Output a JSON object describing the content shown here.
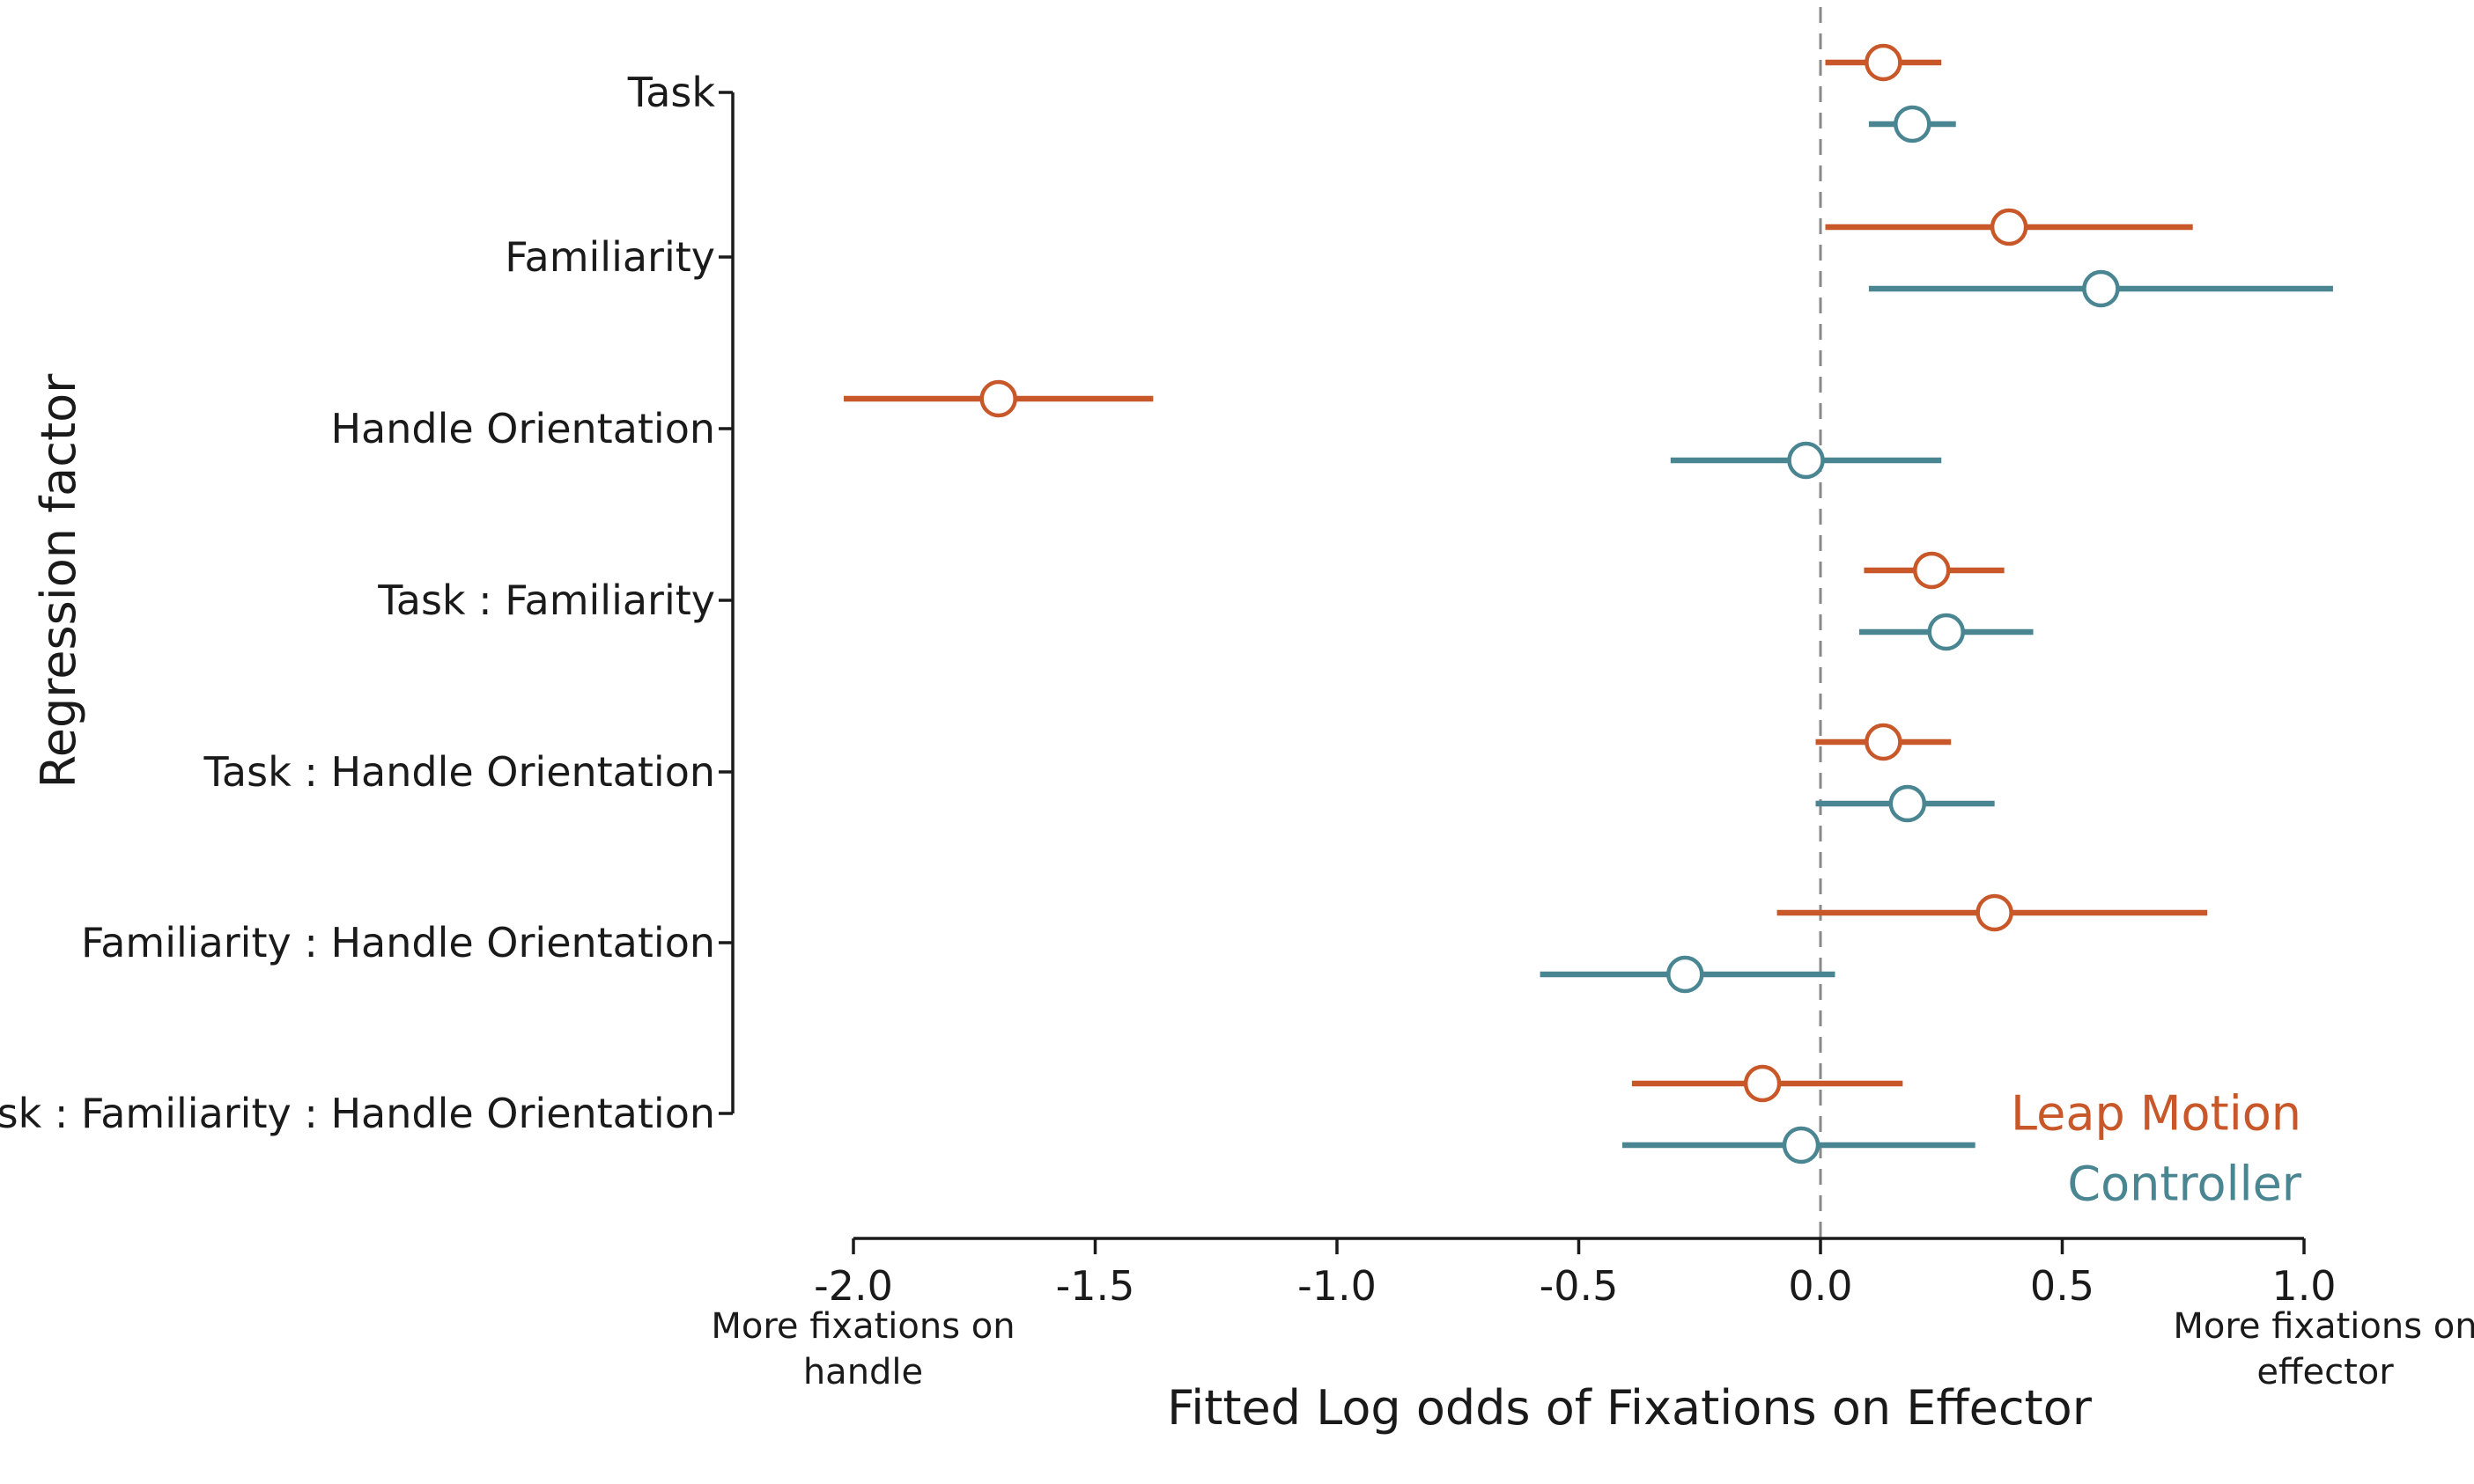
{
  "chart_data": {
    "type": "scatter",
    "subtype": "forest-plot",
    "xlabel": "Fitted Log odds of Fixations on Effector",
    "ylabel": "Regression factor",
    "xlim": [
      -2.0,
      1.0
    ],
    "x_ticks": [
      "-2.0",
      "-1.5",
      "-1.0",
      "-0.5",
      "0.0",
      "0.5",
      "1.0"
    ],
    "x_tick_values": [
      -2.0,
      -1.5,
      -1.0,
      -0.5,
      0.0,
      0.5,
      1.0
    ],
    "x_annotation_left": [
      "More fixations on",
      "handle"
    ],
    "x_annotation_right": [
      "More fixations on",
      "effector"
    ],
    "reference_line": 0.0,
    "grid": false,
    "legend_position": "bottom-right",
    "categories": [
      "Task",
      "Familiarity",
      "Handle Orientation",
      "Task : Familiarity",
      "Task : Handle Orientation",
      "Familiarity : Handle Orientation",
      "Task : Familiarity : Handle Orientation"
    ],
    "series": [
      {
        "name": "Leap Motion",
        "color": "#c8582a",
        "estimate": [
          0.13,
          0.39,
          -1.7,
          0.23,
          0.13,
          0.36,
          -0.12
        ],
        "lower": [
          0.01,
          0.01,
          -2.02,
          0.09,
          -0.01,
          -0.09,
          -0.39
        ],
        "upper": [
          0.25,
          0.77,
          -1.38,
          0.38,
          0.27,
          0.8,
          0.17
        ]
      },
      {
        "name": "Controller",
        "color": "#4a8592",
        "estimate": [
          0.19,
          0.58,
          -0.03,
          0.26,
          0.18,
          -0.28,
          -0.04
        ],
        "lower": [
          0.1,
          0.1,
          -0.31,
          0.08,
          -0.01,
          -0.58,
          -0.41
        ],
        "upper": [
          0.28,
          1.06,
          0.25,
          0.44,
          0.36,
          0.03,
          0.32
        ]
      }
    ]
  }
}
